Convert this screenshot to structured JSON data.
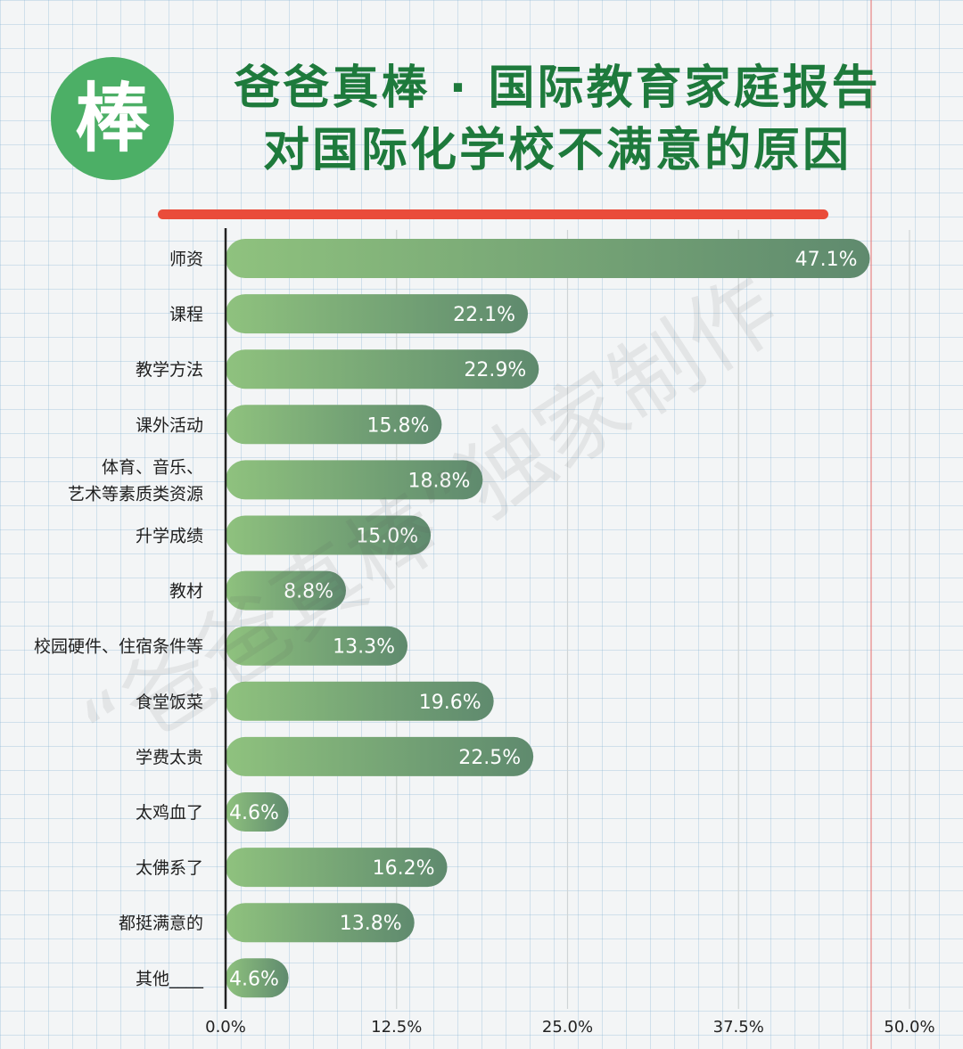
{
  "header": {
    "logo_text": "棒",
    "title_line1": "爸爸真棒 · 国际教育家庭报告",
    "title_line2": "对国际化学校不满意的原因"
  },
  "watermark": "“爸爸真棒”独家制作",
  "colors": {
    "title": "#1e7a3c",
    "logo": "#4caf66",
    "accent_line": "#ea4c3a",
    "bar_start": "#8fc27e",
    "bar_end": "#5f8a6e"
  },
  "chart_data": {
    "type": "bar",
    "orientation": "horizontal",
    "categories": [
      "师资",
      "课程",
      "教学方法",
      "课外活动",
      "体育、音乐、\n艺术等素质类资源",
      "升学成绩",
      "教材",
      "校园硬件、住宿条件等",
      "食堂饭菜",
      "学费太贵",
      "太鸡血了",
      "太佛系了",
      "都挺满意的",
      "其他____"
    ],
    "values": [
      47.1,
      22.1,
      22.9,
      15.8,
      18.8,
      15.0,
      8.8,
      13.3,
      19.6,
      22.5,
      4.6,
      16.2,
      13.8,
      4.6
    ],
    "value_labels": [
      "47.1%",
      "22.1%",
      "22.9%",
      "15.8%",
      "18.8%",
      "15.0%",
      "8.8%",
      "13.3%",
      "19.6%",
      "22.5%",
      "4.6%",
      "16.2%",
      "13.8%",
      "4.6%"
    ],
    "xlim": [
      0,
      50
    ],
    "xticks": [
      0,
      12.5,
      25,
      37.5,
      50
    ],
    "xtick_labels": [
      "0.0%",
      "12.5%",
      "25.0%",
      "37.5%",
      "50.0%"
    ],
    "grid": true
  }
}
